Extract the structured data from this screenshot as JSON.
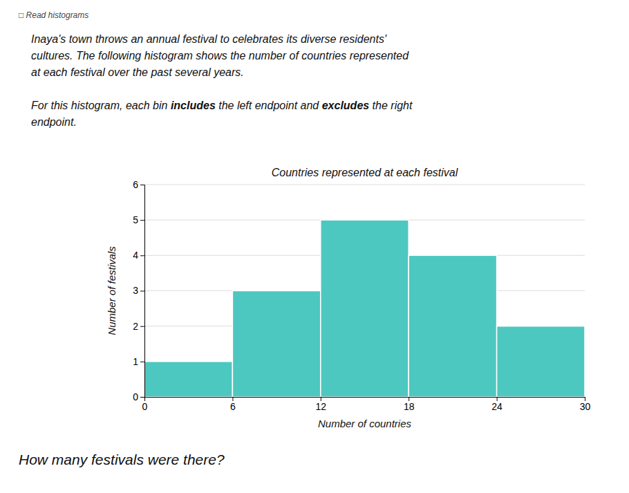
{
  "chart_data": {
    "type": "histogram",
    "title": "Countries represented at each festival",
    "xlabel": "Number of countries",
    "ylabel": "Number of festivals",
    "bins": [
      0,
      6,
      12,
      18,
      24,
      30
    ],
    "values": [
      1,
      3,
      5,
      4,
      2
    ],
    "color": "#4DC8C0",
    "xlim": [
      0,
      30
    ],
    "ylim": [
      0,
      6
    ],
    "xticks": [
      0,
      6,
      12,
      18,
      24,
      30
    ],
    "yticks": [
      0,
      1,
      2,
      3,
      4,
      5,
      6
    ],
    "grid": true,
    "annotations": [
      "□  Read histograms",
      "Inaya's town throws an annual festival to celebrates its diverse residents'",
      "cultures. The following histogram shows the number of countries represented",
      "at each festival over the past several years.",
      [
        "For this histogram, each bin ",
        "includes",
        " the left endpoint and ",
        "excludes",
        " the right"
      ],
      "endpoint.",
      "How many festivals were there?"
    ]
  }
}
